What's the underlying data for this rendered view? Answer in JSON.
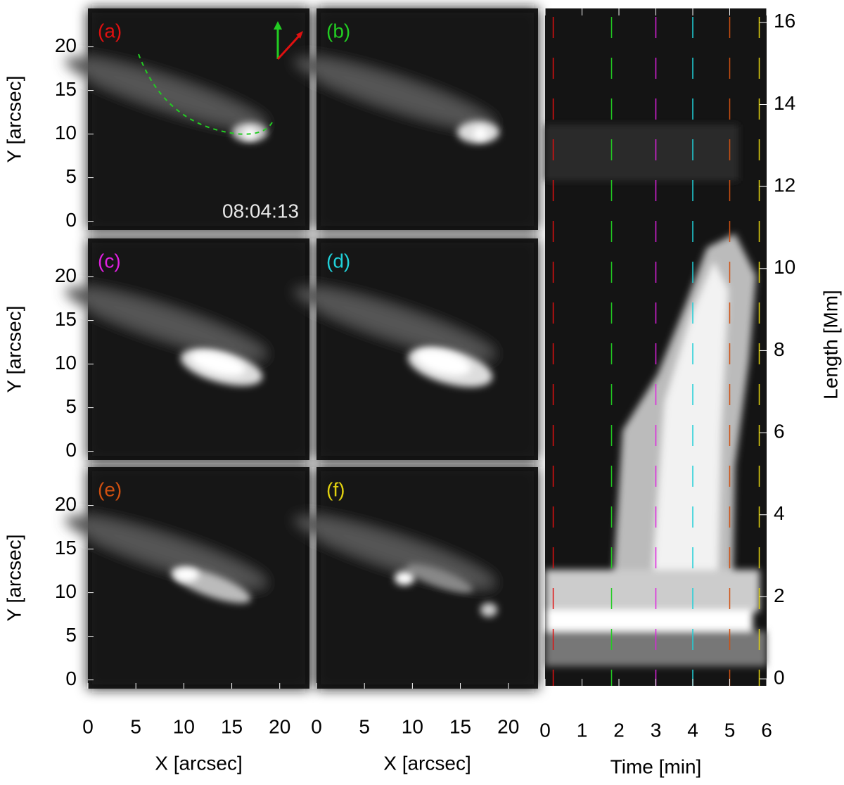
{
  "chart_data": [
    {
      "type": "image",
      "label": "(a)",
      "label_color": "#e01010",
      "time": "08:04:13",
      "xlim": [
        0,
        23.1
      ],
      "ylim": [
        -1,
        24.4
      ],
      "yticks": [
        0,
        5,
        10,
        15,
        20
      ],
      "ylabel": "Y [arcsec]"
    },
    {
      "type": "image",
      "label": "(b)",
      "label_color": "#22cc22",
      "xlim": [
        0,
        23.1
      ],
      "ylim": [
        -1,
        24.4
      ]
    },
    {
      "type": "image",
      "label": "(c)",
      "label_color": "#e020e0",
      "xlim": [
        0,
        23.1
      ],
      "ylim": [
        -1,
        24.4
      ],
      "yticks": [
        0,
        5,
        10,
        15,
        20
      ],
      "ylabel": "Y [arcsec]"
    },
    {
      "type": "image",
      "label": "(d)",
      "label_color": "#20d0d8",
      "xlim": [
        0,
        23.1
      ],
      "ylim": [
        -1,
        24.4
      ]
    },
    {
      "type": "image",
      "label": "(e)",
      "label_color": "#d05010",
      "xlim": [
        0,
        23.1
      ],
      "ylim": [
        -1,
        24.4
      ],
      "xticks": [
        0,
        5,
        10,
        15,
        20
      ],
      "yticks": [
        0,
        5,
        10,
        15,
        20
      ],
      "xlabel": "X [arcsec]",
      "ylabel": "Y [arcsec]"
    },
    {
      "type": "image",
      "label": "(f)",
      "label_color": "#e0d010",
      "xlim": [
        0,
        23.1
      ],
      "ylim": [
        -1,
        24.4
      ],
      "xticks": [
        0,
        5,
        10,
        15,
        20
      ],
      "xlabel": "X [arcsec]"
    },
    {
      "type": "timedistance",
      "xlabel": "Time [min]",
      "ylabel": "Length [Mm]",
      "xlim": [
        0,
        6
      ],
      "ylim": [
        -0.17,
        16.34
      ],
      "xticks": [
        0,
        1,
        2,
        3,
        4,
        5,
        6
      ],
      "yticks": [
        0,
        2,
        4,
        6,
        8,
        10,
        12,
        14,
        16
      ],
      "markers": [
        {
          "x": 0.22,
          "color": "#e01010"
        },
        {
          "x": 1.8,
          "color": "#22cc22"
        },
        {
          "x": 3.0,
          "color": "#e020e0"
        },
        {
          "x": 4.0,
          "color": "#20d0d8"
        },
        {
          "x": 5.0,
          "color": "#d05010"
        },
        {
          "x": 5.8,
          "color": "#e0d010"
        }
      ]
    }
  ]
}
